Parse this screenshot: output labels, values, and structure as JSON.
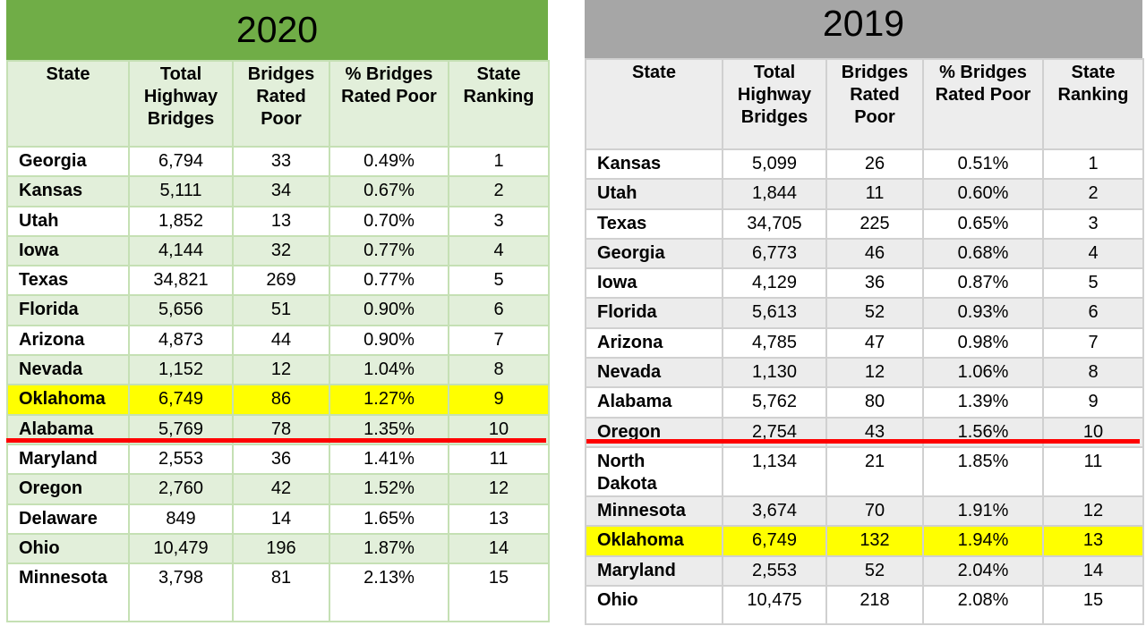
{
  "colors": {
    "highlight": "#ffff00",
    "cutoff_line": "#ff0000",
    "header_2020": "#70ad47",
    "header_2019": "#a6a6a6"
  },
  "tables": [
    {
      "title": "2020",
      "columns": [
        "State",
        "Total Highway Bridges",
        "Bridges Rated Poor",
        "% Bridges Rated Poor",
        "State Ranking"
      ],
      "rows": [
        [
          "Georgia",
          "6,794",
          "33",
          "0.49%",
          "1"
        ],
        [
          "Kansas",
          "5,111",
          "34",
          "0.67%",
          "2"
        ],
        [
          "Utah",
          "1,852",
          "13",
          "0.70%",
          "3"
        ],
        [
          "Iowa",
          "4,144",
          "32",
          "0.77%",
          "4"
        ],
        [
          "Texas",
          "34,821",
          "269",
          "0.77%",
          "5"
        ],
        [
          "Florida",
          "5,656",
          "51",
          "0.90%",
          "6"
        ],
        [
          "Arizona",
          "4,873",
          "44",
          "0.90%",
          "7"
        ],
        [
          "Nevada",
          "1,152",
          "12",
          "1.04%",
          "8"
        ],
        [
          "Oklahoma",
          "6,749",
          "86",
          "1.27%",
          "9"
        ],
        [
          "Alabama",
          "5,769",
          "78",
          "1.35%",
          "10"
        ],
        [
          "Maryland",
          "2,553",
          "36",
          "1.41%",
          "11"
        ],
        [
          "Oregon",
          "2,760",
          "42",
          "1.52%",
          "12"
        ],
        [
          "Delaware",
          "849",
          "14",
          "1.65%",
          "13"
        ],
        [
          "Ohio",
          "10,479",
          "196",
          "1.87%",
          "14"
        ],
        [
          "Minnesota",
          "3,798",
          "81",
          "2.13%",
          "15"
        ]
      ],
      "highlighted_state": "Oklahoma",
      "cutoff_after_rank": 10
    },
    {
      "title": "2019",
      "columns": [
        "State",
        "Total Highway Bridges",
        "Bridges Rated Poor",
        "% Bridges Rated Poor",
        "State Ranking"
      ],
      "rows": [
        [
          "Kansas",
          "5,099",
          "26",
          "0.51%",
          "1"
        ],
        [
          "Utah",
          "1,844",
          "11",
          "0.60%",
          "2"
        ],
        [
          "Texas",
          "34,705",
          "225",
          "0.65%",
          "3"
        ],
        [
          "Georgia",
          "6,773",
          "46",
          "0.68%",
          "4"
        ],
        [
          "Iowa",
          "4,129",
          "36",
          "0.87%",
          "5"
        ],
        [
          "Florida",
          "5,613",
          "52",
          "0.93%",
          "6"
        ],
        [
          "Arizona",
          "4,785",
          "47",
          "0.98%",
          "7"
        ],
        [
          "Nevada",
          "1,130",
          "12",
          "1.06%",
          "8"
        ],
        [
          "Alabama",
          "5,762",
          "80",
          "1.39%",
          "9"
        ],
        [
          "Oregon",
          "2,754",
          "43",
          "1.56%",
          "10"
        ],
        [
          "North Dakota",
          "1,134",
          "21",
          "1.85%",
          "11"
        ],
        [
          "Minnesota",
          "3,674",
          "70",
          "1.91%",
          "12"
        ],
        [
          "Oklahoma",
          "6,749",
          "132",
          "1.94%",
          "13"
        ],
        [
          "Maryland",
          "2,553",
          "52",
          "2.04%",
          "14"
        ],
        [
          "Ohio",
          "10,475",
          "218",
          "2.08%",
          "15"
        ]
      ],
      "highlighted_state": "Oklahoma",
      "cutoff_after_rank": 10
    }
  ]
}
